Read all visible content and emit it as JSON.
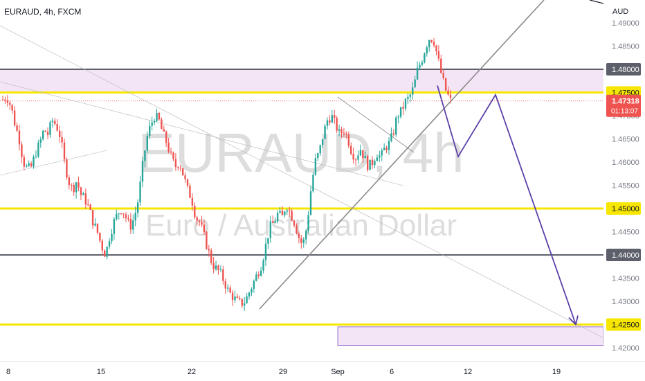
{
  "header": {
    "title": "EURAUD, 4h, FXCM"
  },
  "watermark": {
    "symbol": "EURAUD, 4h",
    "description": "Euro / Australian Dollar"
  },
  "price_axis": {
    "currency": "AUD",
    "ticks": [
      "1.49000",
      "1.48500",
      "1.48000",
      "1.47500",
      "1.47000",
      "1.46500",
      "1.46000",
      "1.45500",
      "1.45000",
      "1.44500",
      "1.44000",
      "1.43500",
      "1.43000",
      "1.42500",
      "1.42000"
    ],
    "highlighted": [
      {
        "label": "1.48000",
        "color": "#5d606b"
      },
      {
        "label": "1.47500",
        "color": "#f7e600"
      },
      {
        "label": "1.45000",
        "color": "#f7e600"
      },
      {
        "label": "1.44000",
        "color": "#5d606b"
      },
      {
        "label": "1.42500",
        "color": "#f7e600"
      }
    ],
    "current_price": "1.47318",
    "countdown": "01:13:07"
  },
  "time_axis": {
    "labels": [
      "8",
      "15",
      "22",
      "29",
      "Sep",
      "6",
      "12",
      "19"
    ]
  },
  "colors": {
    "up": "#26a69a",
    "down": "#ef5350",
    "yellow": "#f7e600",
    "gray_level": "#5d606b",
    "zone_fill": "#f3e5f5",
    "zone_border": "#7e57c2",
    "projection": "#5b3fa8",
    "trend": "#9e9e9e",
    "price_label": "#ef5350",
    "watermark": "#d6d6d6"
  },
  "chart_data": {
    "type": "candlestick",
    "instrument": "EURAUD",
    "timeframe": "4h",
    "source": "FXCM",
    "yaxis": {
      "unit": "AUD",
      "range": [
        1.4185,
        1.4925
      ],
      "tick_step": 0.005
    },
    "xaxis": {
      "labels": [
        "8",
        "15",
        "22",
        "29",
        "Sep",
        "6",
        "12",
        "19"
      ]
    },
    "horizontal_levels": [
      {
        "price": 1.48,
        "style": "gray"
      },
      {
        "price": 1.475,
        "style": "yellow"
      },
      {
        "price": 1.45,
        "style": "yellow"
      },
      {
        "price": 1.44,
        "style": "gray"
      },
      {
        "price": 1.425,
        "style": "yellow"
      }
    ],
    "zones": [
      {
        "from": 1.475,
        "to": 1.48
      },
      {
        "from": 1.4205,
        "to": 1.4245
      }
    ],
    "current_price": 1.47318,
    "projection_path": [
      1.4765,
      1.4612,
      1.4745,
      1.425
    ],
    "price_path_keypoints": [
      1.4735,
      1.474,
      1.472,
      1.468,
      1.465,
      1.46,
      1.4585,
      1.459,
      1.462,
      1.464,
      1.467,
      1.466,
      1.469,
      1.468,
      1.4655,
      1.46,
      1.456,
      1.454,
      1.456,
      1.453,
      1.452,
      1.45,
      1.447,
      1.445,
      1.442,
      1.44,
      1.444,
      1.447,
      1.449,
      1.45,
      1.448,
      1.446,
      1.448,
      1.452,
      1.459,
      1.465,
      1.468,
      1.47,
      1.469,
      1.466,
      1.464,
      1.461,
      1.459,
      1.46,
      1.457,
      1.454,
      1.452,
      1.448,
      1.447,
      1.444,
      1.441,
      1.438,
      1.437,
      1.436,
      1.434,
      1.432,
      1.431,
      1.43,
      1.4295,
      1.43,
      1.432,
      1.434,
      1.436,
      1.438,
      1.442,
      1.446,
      1.447,
      1.449,
      1.448,
      1.451,
      1.449,
      1.447,
      1.444,
      1.442,
      1.446,
      1.454,
      1.46,
      1.462,
      1.466,
      1.469,
      1.47,
      1.468,
      1.466,
      1.467,
      1.465,
      1.462,
      1.461,
      1.463,
      1.461,
      1.459,
      1.46,
      1.462,
      1.461,
      1.463,
      1.464,
      1.466,
      1.47,
      1.471,
      1.473,
      1.474,
      1.476,
      1.48,
      1.482,
      1.485,
      1.487,
      1.486,
      1.482,
      1.478,
      1.475,
      1.4732
    ]
  }
}
